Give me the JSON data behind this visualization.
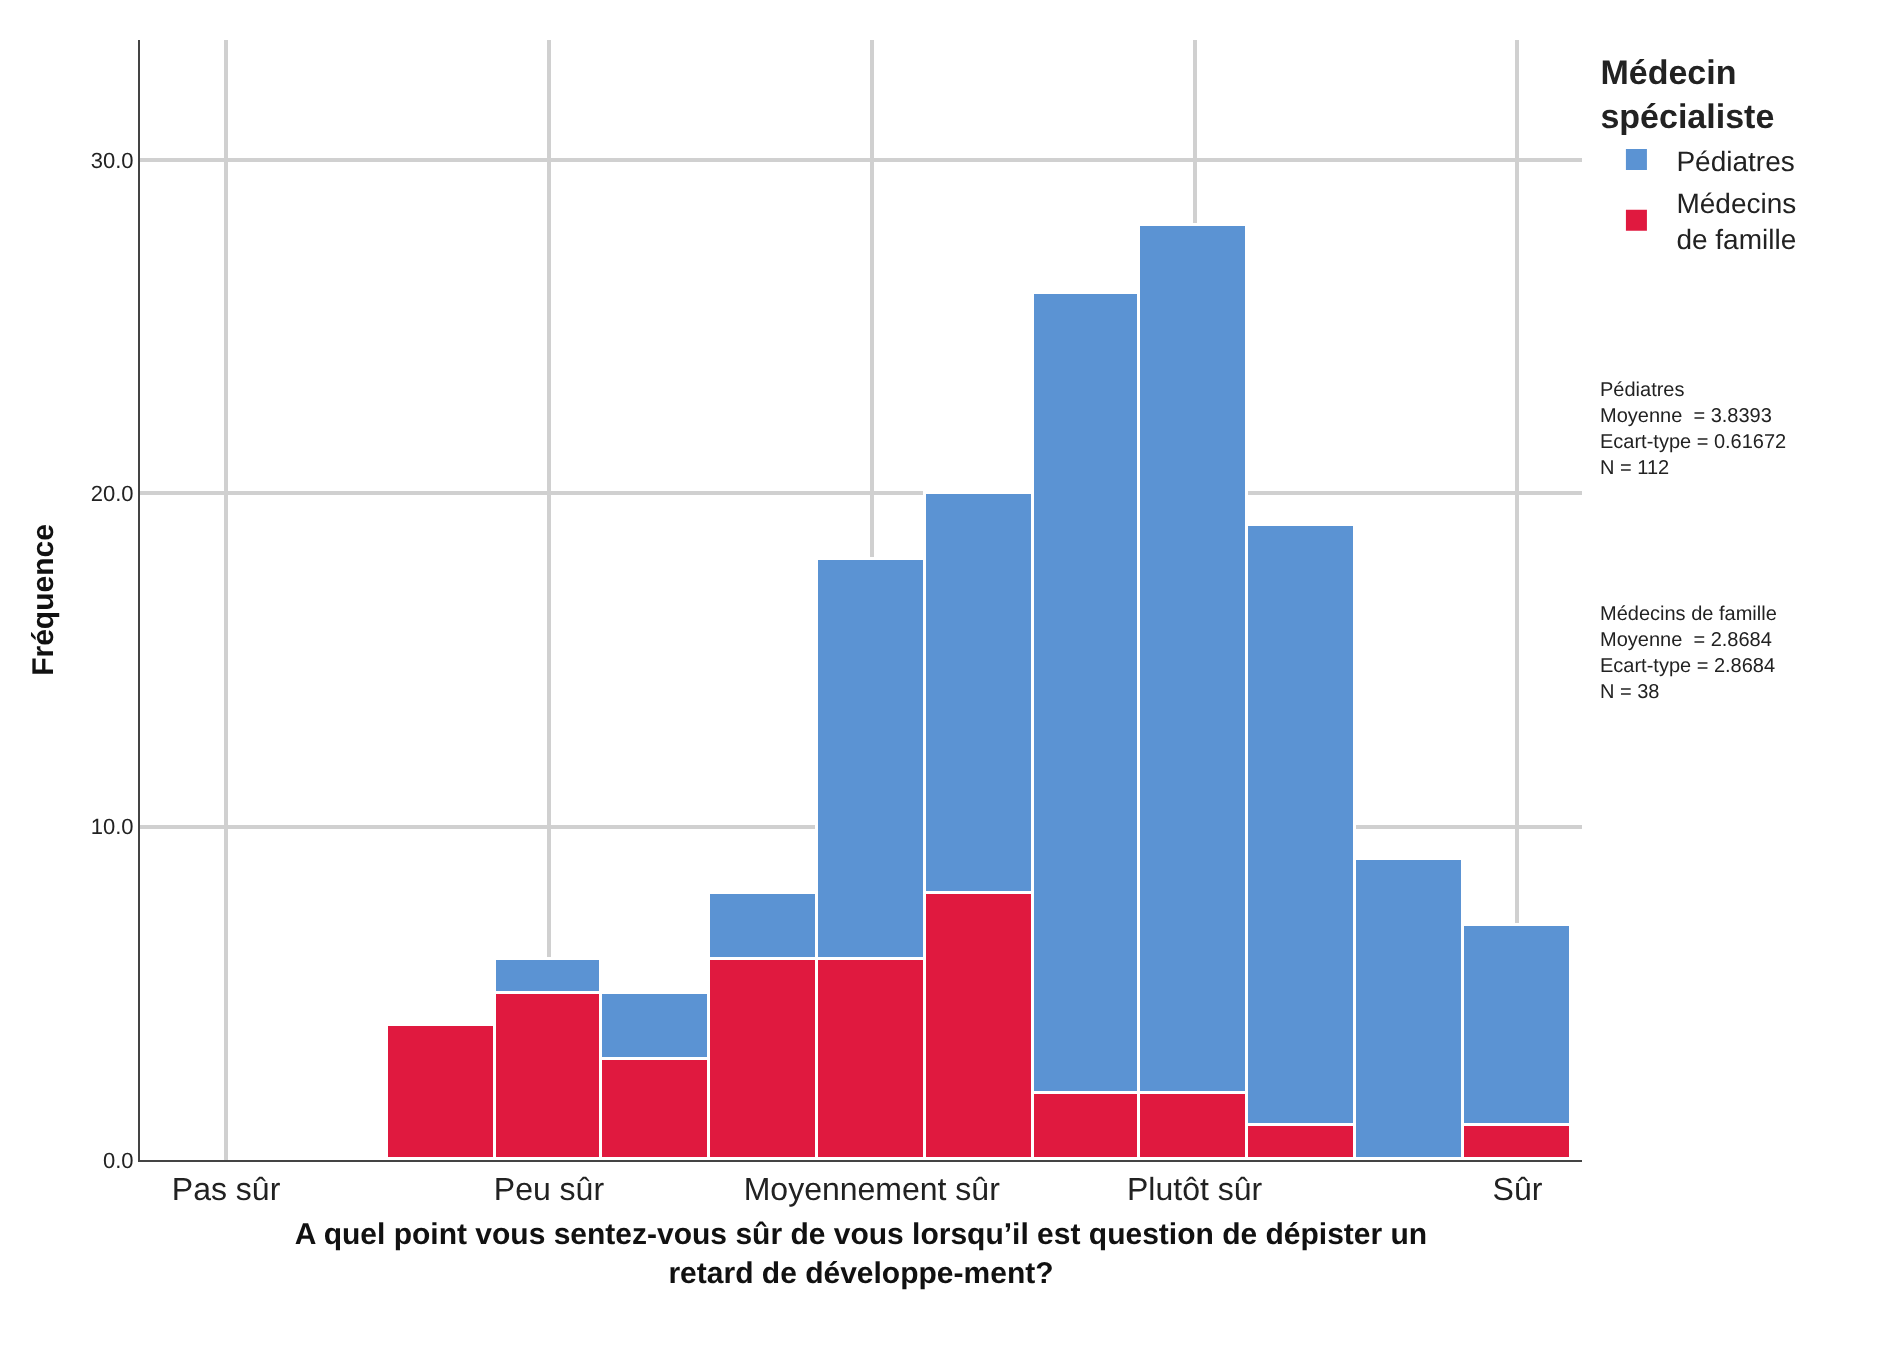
{
  "chart_data": {
    "type": "bar",
    "stacked": true,
    "xlabel": "A quel point vous sentez-vous sûr de vous lorsqu’il est question de dépister un retard de développe-ment?",
    "ylabel": "Fréquence",
    "legend_title": "Médecin spécialiste",
    "categories": [
      "Pas sûr",
      null,
      null,
      "Peu sûr",
      null,
      null,
      "Moyennement sûr",
      null,
      null,
      "Plutôt sûr",
      null,
      null,
      "Sûr"
    ],
    "series": [
      {
        "name": "Médecins de famille",
        "color": "#e0193f",
        "values": [
          null,
          null,
          4,
          5,
          3,
          6,
          6,
          8,
          2,
          2,
          1,
          null,
          1
        ]
      },
      {
        "name": "Pédiatres",
        "color": "#5b93d3",
        "values": [
          null,
          null,
          null,
          1,
          2,
          2,
          12,
          12,
          24,
          26,
          18,
          9,
          6
        ]
      }
    ],
    "ylim": [
      0,
      33.6
    ],
    "yticks": [
      {
        "value": 0,
        "label": "0.0"
      },
      {
        "value": 10,
        "label": "10.0"
      },
      {
        "value": 20,
        "label": "20.0"
      },
      {
        "value": 30,
        "label": "30.0"
      }
    ],
    "grid": true,
    "legend": "top right",
    "annotations": [
      "Pédiatres\nMoyenne  = 3.8393\nEcart-type = 0.61672\nN = 112",
      "Médecins de famille\nMoyenne  = 2.8684\nEcart-type = 2.8684\nN = 38"
    ]
  }
}
